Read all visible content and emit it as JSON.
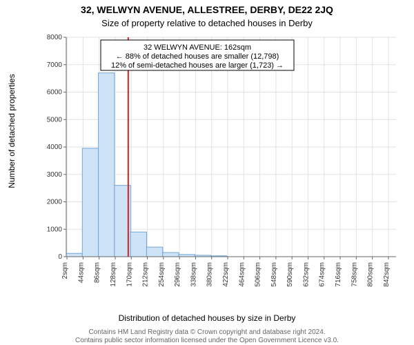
{
  "title1": "32, WELWYN AVENUE, ALLESTREE, DERBY, DE22 2JQ",
  "title2": "Size of property relative to detached houses in Derby",
  "ylabel": "Number of detached properties",
  "xlabel": "Distribution of detached houses by size in Derby",
  "caption1": "Contains HM Land Registry data © Crown copyright and database right 2024.",
  "caption2": "Contains public sector information licensed under the Open Government Licence v3.0.",
  "infobox": {
    "line1": "32 WELWYN AVENUE: 162sqm",
    "line2": "← 88% of detached houses are smaller (12,798)",
    "line3": "12% of semi-detached houses are larger (1,723) →"
  },
  "chart": {
    "type": "histogram",
    "background_color": "#ffffff",
    "grid_color": "#e2e2e2",
    "bar_fill": "#cfe3f6",
    "bar_stroke": "#6ea6d8",
    "marker_color": "#d02020",
    "text_color": "#000000",
    "xlim": [
      0,
      862
    ],
    "ylim": [
      0,
      8000
    ],
    "yticks": [
      0,
      1000,
      2000,
      3000,
      4000,
      5000,
      6000,
      7000,
      8000
    ],
    "xtick_start": 2,
    "xtick_step": 42,
    "xtick_count": 21,
    "xtick_suffix": "sqm",
    "marker_x": 162,
    "bars": [
      {
        "x0": 0,
        "x1": 42,
        "y": 120
      },
      {
        "x0": 42,
        "x1": 84,
        "y": 3950
      },
      {
        "x0": 84,
        "x1": 126,
        "y": 6700
      },
      {
        "x0": 126,
        "x1": 168,
        "y": 2600
      },
      {
        "x0": 168,
        "x1": 210,
        "y": 900
      },
      {
        "x0": 210,
        "x1": 252,
        "y": 350
      },
      {
        "x0": 252,
        "x1": 294,
        "y": 150
      },
      {
        "x0": 294,
        "x1": 336,
        "y": 80
      },
      {
        "x0": 336,
        "x1": 378,
        "y": 50
      },
      {
        "x0": 378,
        "x1": 420,
        "y": 30
      },
      {
        "x0": 420,
        "x1": 462,
        "y": 0
      },
      {
        "x0": 462,
        "x1": 504,
        "y": 0
      },
      {
        "x0": 504,
        "x1": 546,
        "y": 0
      },
      {
        "x0": 546,
        "x1": 588,
        "y": 0
      },
      {
        "x0": 588,
        "x1": 630,
        "y": 0
      },
      {
        "x0": 630,
        "x1": 672,
        "y": 0
      },
      {
        "x0": 672,
        "x1": 714,
        "y": 0
      },
      {
        "x0": 714,
        "x1": 756,
        "y": 0
      },
      {
        "x0": 756,
        "x1": 798,
        "y": 0
      },
      {
        "x0": 798,
        "x1": 840,
        "y": 0
      }
    ],
    "label_fontsize": 12,
    "tick_fontsize": 10,
    "title_fontsize": 14,
    "infobox_fontsize": 11
  }
}
